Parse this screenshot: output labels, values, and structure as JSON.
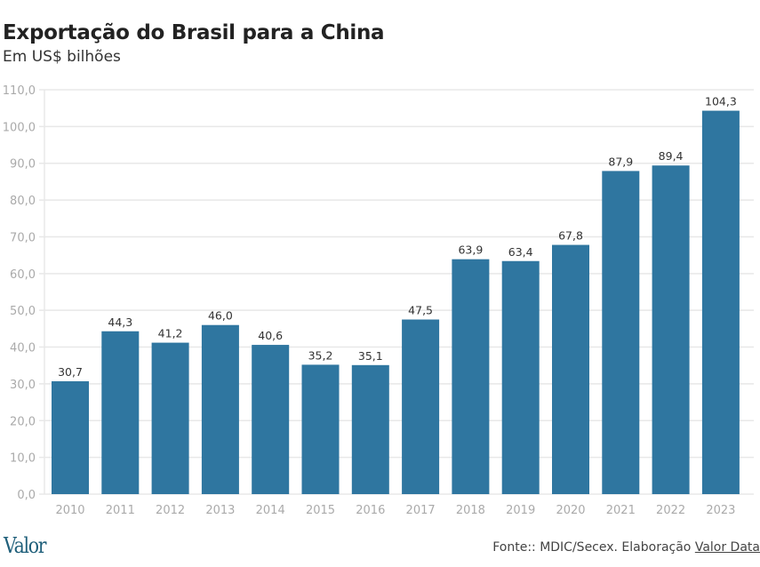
{
  "chart_data": {
    "type": "bar",
    "title": "Exportação do Brasil para a China",
    "subtitle": "Em US$ bilhões",
    "categories": [
      "2010",
      "2011",
      "2012",
      "2013",
      "2014",
      "2015",
      "2016",
      "2017",
      "2018",
      "2019",
      "2020",
      "2021",
      "2022",
      "2023"
    ],
    "values": [
      30.7,
      44.3,
      41.2,
      46.0,
      40.6,
      35.2,
      35.1,
      47.5,
      63.9,
      63.4,
      67.8,
      87.9,
      89.4,
      104.3
    ],
    "data_labels": [
      "30,7",
      "44,3",
      "41,2",
      "46,0",
      "40,6",
      "35,2",
      "35,1",
      "47,5",
      "63,9",
      "63,4",
      "67,8",
      "87,9",
      "89,4",
      "104,3"
    ],
    "ylim": [
      0,
      110
    ],
    "yticks": [
      "0,0",
      "10,0",
      "20,0",
      "30,0",
      "40,0",
      "50,0",
      "60,0",
      "70,0",
      "80,0",
      "90,0",
      "100,0",
      "110,0"
    ],
    "grid": true,
    "bar_color": "#2f76a0"
  },
  "footer": {
    "logo": "Valor",
    "source_prefix": "Fonte:: MDIC/Secex. Elaboração ",
    "source_link": "Valor Data"
  }
}
